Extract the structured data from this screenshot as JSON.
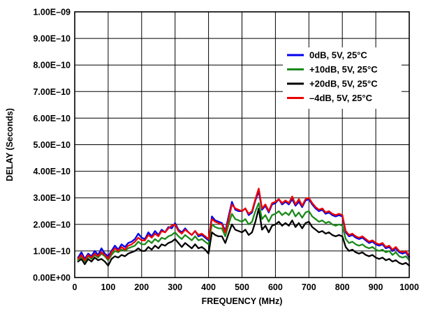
{
  "chart_data": {
    "type": "line",
    "title": "",
    "xlabel": "FREQUENCY (MHz)",
    "ylabel": "DELAY (Seconds)",
    "xlim": [
      0,
      1000
    ],
    "ylim": [
      0,
      1e-09
    ],
    "x_ticks": [
      0,
      100,
      200,
      300,
      400,
      500,
      600,
      700,
      800,
      900,
      1000
    ],
    "x_tick_labels": [
      "0",
      "100",
      "200",
      "300",
      "400",
      "500",
      "600",
      "700",
      "800",
      "900",
      "1000"
    ],
    "y_ticks": [
      0,
      1e-10,
      2e-10,
      3e-10,
      4e-10,
      5e-10,
      6e-10,
      7e-10,
      8e-10,
      9e-10,
      1e-09
    ],
    "y_tick_labels": [
      "0.00E+00",
      "1.00E–10",
      "2.00E–10",
      "3.00E–10",
      "4.00E–10",
      "5.00E–10",
      "6.00E–10",
      "7.00E–10",
      "8.00E–10",
      "9.00E–10",
      "1.00E–09"
    ],
    "grid": true,
    "legend_position": "top-right",
    "x": [
      10,
      20,
      30,
      40,
      50,
      60,
      70,
      80,
      90,
      100,
      110,
      120,
      130,
      140,
      150,
      160,
      170,
      180,
      190,
      200,
      210,
      220,
      230,
      240,
      250,
      260,
      270,
      280,
      290,
      300,
      310,
      320,
      330,
      340,
      350,
      360,
      370,
      380,
      390,
      400,
      410,
      420,
      430,
      440,
      450,
      460,
      470,
      480,
      490,
      500,
      510,
      520,
      530,
      540,
      550,
      560,
      570,
      580,
      590,
      600,
      610,
      620,
      630,
      640,
      650,
      660,
      670,
      680,
      690,
      700,
      710,
      720,
      730,
      740,
      750,
      760,
      770,
      780,
      790,
      800,
      810,
      820,
      830,
      840,
      850,
      860,
      870,
      880,
      890,
      900,
      910,
      920,
      930,
      940,
      950,
      960,
      970,
      980,
      990,
      1000
    ],
    "series": [
      {
        "name": "0dB, 5V, 25°C",
        "color": "#0000ee",
        "values": [
          7.5e-11,
          9.5e-11,
          7e-11,
          9e-11,
          8e-11,
          1e-10,
          8.5e-11,
          1.1e-10,
          9e-11,
          8e-11,
          1e-10,
          1.2e-10,
          1.05e-10,
          1.25e-10,
          1.15e-10,
          1.3e-10,
          1.35e-10,
          1.45e-10,
          1.65e-10,
          1.5e-10,
          1.45e-10,
          1.7e-10,
          1.55e-10,
          1.75e-10,
          1.6e-10,
          1.8e-10,
          1.7e-10,
          1.9e-10,
          1.85e-10,
          2.05e-10,
          1.8e-10,
          1.7e-10,
          1.85e-10,
          1.7e-10,
          1.6e-10,
          1.75e-10,
          1.55e-10,
          1.6e-10,
          1.5e-10,
          1.4e-10,
          2.3e-10,
          2.15e-10,
          2.1e-10,
          2.05e-10,
          1.75e-10,
          2.3e-10,
          2.85e-10,
          2.55e-10,
          2.5e-10,
          2.5e-10,
          2.6e-10,
          2.35e-10,
          2.45e-10,
          2.9e-10,
          3.25e-10,
          2.55e-10,
          2.7e-10,
          2.45e-10,
          2.75e-10,
          2.8e-10,
          2.95e-10,
          2.75e-10,
          2.85e-10,
          2.75e-10,
          2.95e-10,
          2.7e-10,
          2.85e-10,
          2.65e-10,
          2.9e-10,
          2.95e-10,
          2.75e-10,
          2.6e-10,
          2.5e-10,
          2.55e-10,
          2.4e-10,
          2.45e-10,
          2.35e-10,
          2.3e-10,
          2.35e-10,
          2.3e-10,
          1.7e-10,
          1.55e-10,
          1.6e-10,
          1.5e-10,
          1.45e-10,
          1.5e-10,
          1.4e-10,
          1.3e-10,
          1.35e-10,
          1.25e-10,
          1.2e-10,
          1.25e-10,
          1.1e-10,
          1.15e-10,
          1e-10,
          1.1e-10,
          9.5e-11,
          9e-11,
          9.5e-11,
          7.5e-11
        ]
      },
      {
        "name": "+10dB, 5V, 25°C",
        "color": "#1a8a1a",
        "values": [
          6.5e-11,
          8e-11,
          6e-11,
          8e-11,
          7e-11,
          8.5e-11,
          7.5e-11,
          9e-11,
          8e-11,
          6.5e-11,
          8.5e-11,
          1e-10,
          9.5e-11,
          1.05e-10,
          1e-10,
          1.1e-10,
          1.15e-10,
          1.2e-10,
          1.35e-10,
          1.25e-10,
          1.25e-10,
          1.4e-10,
          1.3e-10,
          1.45e-10,
          1.35e-10,
          1.5e-10,
          1.45e-10,
          1.55e-10,
          1.6e-10,
          1.7e-10,
          1.55e-10,
          1.45e-10,
          1.6e-10,
          1.5e-10,
          1.4e-10,
          1.55e-10,
          1.4e-10,
          1.45e-10,
          1.35e-10,
          1.25e-10,
          2e-10,
          1.9e-10,
          1.85e-10,
          1.85e-10,
          1.55e-10,
          2e-10,
          2.4e-10,
          2.2e-10,
          2.15e-10,
          2.1e-10,
          2.2e-10,
          2e-10,
          2.1e-10,
          2.5e-10,
          2.8e-10,
          2.2e-10,
          2.35e-10,
          2.1e-10,
          2.35e-10,
          2.4e-10,
          2.5e-10,
          2.35e-10,
          2.45e-10,
          2.35e-10,
          2.55e-10,
          2.3e-10,
          2.45e-10,
          2.25e-10,
          2.45e-10,
          2.5e-10,
          2.3e-10,
          2.2e-10,
          2.1e-10,
          2.15e-10,
          2.05e-10,
          2.1e-10,
          2e-10,
          1.95e-10,
          2e-10,
          1.95e-10,
          1.45e-10,
          1.3e-10,
          1.35e-10,
          1.25e-10,
          1.2e-10,
          1.25e-10,
          1.15e-10,
          1.1e-10,
          1.15e-10,
          1.05e-10,
          1e-10,
          1.05e-10,
          9.5e-11,
          1e-10,
          8.5e-11,
          9.5e-11,
          8e-11,
          7.5e-11,
          8e-11,
          6.5e-11
        ]
      },
      {
        "name": "+20dB, 5V, 25°C",
        "color": "#000000",
        "values": [
          6e-11,
          7e-11,
          5e-11,
          7e-11,
          6e-11,
          7.5e-11,
          6.5e-11,
          7e-11,
          6e-11,
          4.5e-11,
          7e-11,
          8e-11,
          7.5e-11,
          8.5e-11,
          8e-11,
          9e-11,
          9.5e-11,
          1e-10,
          1.1e-10,
          1e-10,
          1e-10,
          1.15e-10,
          1.05e-10,
          1.2e-10,
          1.1e-10,
          1.25e-10,
          1.2e-10,
          1.3e-10,
          1.35e-10,
          1.45e-10,
          1.3e-10,
          1.15e-10,
          1.3e-10,
          1.2e-10,
          1.1e-10,
          1.25e-10,
          1.1e-10,
          1.15e-10,
          1.05e-10,
          9e-11,
          1.7e-10,
          1.6e-10,
          1.55e-10,
          1.55e-10,
          1.3e-10,
          1.65e-10,
          2e-10,
          1.8e-10,
          1.75e-10,
          1.7e-10,
          1.8e-10,
          1.6e-10,
          1.7e-10,
          2.1e-10,
          2.6e-10,
          1.8e-10,
          1.95e-10,
          1.7e-10,
          1.95e-10,
          2e-10,
          2.1e-10,
          1.95e-10,
          2.05e-10,
          1.95e-10,
          2.15e-10,
          1.9e-10,
          2.05e-10,
          1.85e-10,
          2.05e-10,
          2.1e-10,
          1.9e-10,
          1.8e-10,
          1.7e-10,
          1.75e-10,
          1.65e-10,
          1.7e-10,
          1.6e-10,
          1.55e-10,
          1.6e-10,
          1.55e-10,
          1.15e-10,
          1e-10,
          1.05e-10,
          9.5e-11,
          9e-11,
          9.5e-11,
          8.5e-11,
          8e-11,
          8.5e-11,
          7.5e-11,
          7e-11,
          7.5e-11,
          6.5e-11,
          7e-11,
          6e-11,
          6.5e-11,
          5.5e-11,
          5e-11,
          5.5e-11,
          4.5e-11
        ]
      },
      {
        "name": "–4dB, 5V, 25°C",
        "color": "#ee0000",
        "values": [
          7e-11,
          8.5e-11,
          6.5e-11,
          8.5e-11,
          7.5e-11,
          9e-11,
          8e-11,
          9.5e-11,
          8.5e-11,
          7e-11,
          9.5e-11,
          1.1e-10,
          1e-10,
          1.15e-10,
          1.05e-10,
          1.2e-10,
          1.25e-10,
          1.35e-10,
          1.5e-10,
          1.4e-10,
          1.4e-10,
          1.6e-10,
          1.5e-10,
          1.65e-10,
          1.55e-10,
          1.75e-10,
          1.7e-10,
          1.85e-10,
          1.95e-10,
          2e-10,
          1.75e-10,
          1.65e-10,
          1.8e-10,
          1.7e-10,
          1.6e-10,
          1.75e-10,
          1.6e-10,
          1.65e-10,
          1.55e-10,
          1.45e-10,
          2.2e-10,
          2.1e-10,
          2.05e-10,
          2e-10,
          1.7e-10,
          2.2e-10,
          2.75e-10,
          2.6e-10,
          2.55e-10,
          2.5e-10,
          2.6e-10,
          2.4e-10,
          2.5e-10,
          2.95e-10,
          3.35e-10,
          2.6e-10,
          2.75e-10,
          2.5e-10,
          2.8e-10,
          2.85e-10,
          2.95e-10,
          2.8e-10,
          2.9e-10,
          2.8e-10,
          3.05e-10,
          2.75e-10,
          2.95e-10,
          2.7e-10,
          2.95e-10,
          3e-10,
          2.8e-10,
          2.65e-10,
          2.55e-10,
          2.6e-10,
          2.45e-10,
          2.5e-10,
          2.4e-10,
          2.35e-10,
          2.4e-10,
          2.35e-10,
          1.75e-10,
          1.6e-10,
          1.65e-10,
          1.55e-10,
          1.5e-10,
          1.55e-10,
          1.45e-10,
          1.35e-10,
          1.4e-10,
          1.3e-10,
          1.25e-10,
          1.3e-10,
          1.15e-10,
          1.2e-10,
          1.05e-10,
          1.15e-10,
          1e-10,
          9.5e-11,
          1e-10,
          8e-11
        ]
      }
    ]
  }
}
